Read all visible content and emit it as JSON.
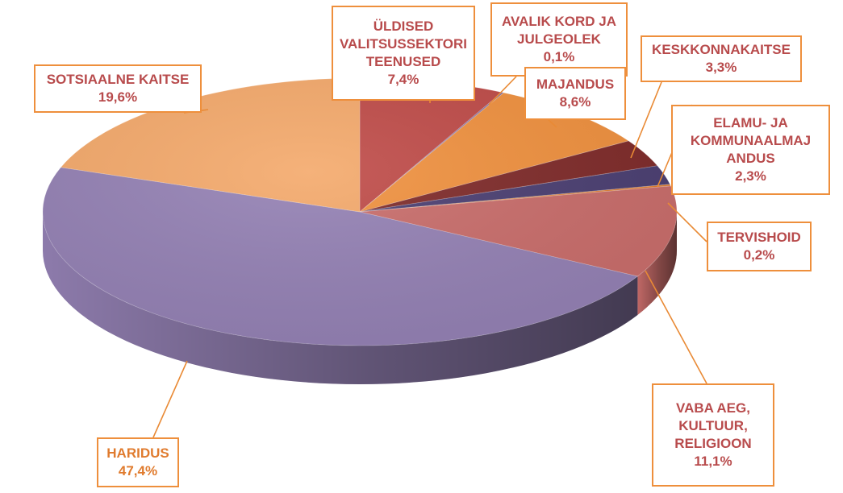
{
  "chart_data": {
    "type": "pie",
    "title": "",
    "unit": "%",
    "slices": [
      {
        "name": "ÜLDISED\nVALITSUSSEKTORI\nTEENUSED",
        "value_label": "7,4%",
        "value": 7.4,
        "color": "#bf4b48",
        "label_color": "#b84b4c"
      },
      {
        "name": "AVALIK KORD JA\nJULGEOLEK",
        "value_label": "0,1%",
        "value": 0.1,
        "color": "#7f6aa0",
        "label_color": "#b84b4c"
      },
      {
        "name": "MAJANDUS",
        "value_label": "8,6%",
        "value": 8.6,
        "color": "#f0913f",
        "label_color": "#b84b4c"
      },
      {
        "name": "KESKKONNAKAITSE",
        "value_label": "3,3%",
        "value": 3.3,
        "color": "#7f2b2a",
        "label_color": "#b84b4c"
      },
      {
        "name": "ELAMU- JA\nKOMMUNAALMAJ\nANDUS",
        "value_label": "2,3%",
        "value": 2.3,
        "color": "#4b3f72",
        "label_color": "#b84b4c"
      },
      {
        "name": "TERVISHOID",
        "value_label": "0,2%",
        "value": 0.2,
        "color": "#e07b2e",
        "label_color": "#b84b4c"
      },
      {
        "name": "VABA AEG,\nKULTUUR,\nRELIGIOON",
        "value_label": "11,1%",
        "value": 11.1,
        "color": "#c96d6b",
        "label_color": "#b84b4c"
      },
      {
        "name": "HARIDUS",
        "value_label": "47,4%",
        "value": 47.4,
        "color": "#9481b4",
        "label_color": "#e07b2e"
      },
      {
        "name": "SOTSIAALNE KAITSE",
        "value_label": "19,6%",
        "value": 19.6,
        "color": "#f4a96b",
        "label_color": "#b84b4c"
      }
    ],
    "label_border_color": "#ee8f3c",
    "leader_line_color": "#e98a35"
  }
}
